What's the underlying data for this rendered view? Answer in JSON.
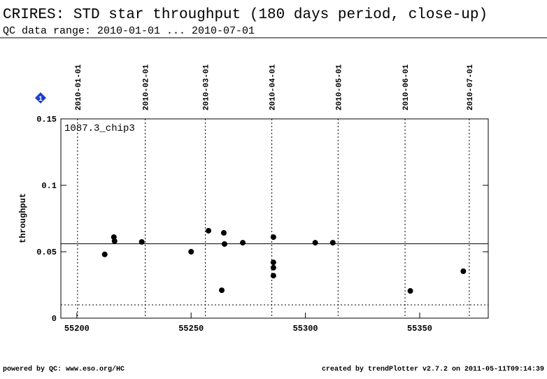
{
  "chart_data": {
    "type": "scatter",
    "title": "CRIRES: STD star throughput (180 days period, close-up)",
    "subtitle": "QC data range: 2010-01-01 ... 2010-07-01",
    "ylabel": "throughput",
    "annotation": "1087.3_chip3",
    "badge": "1",
    "footer_left": "powered by QC: www.eso.org/HC",
    "footer_right": "created by trendPlotter v2.7.2 on 2011-05-11T09:14:39",
    "x": [
      55212.2,
      55216.2,
      55216.5,
      55228.4,
      55250,
      55257.6,
      55263.4,
      55264.3,
      55264.6,
      55272.6,
      55286,
      55286,
      55286,
      55286,
      55304.3,
      55312,
      55345.9,
      55369.1
    ],
    "values": [
      0.048,
      0.061,
      0.058,
      0.0574,
      0.05,
      0.0658,
      0.021,
      0.0642,
      0.0558,
      0.0568,
      0.061,
      0.042,
      0.038,
      0.032,
      0.0568,
      0.0568,
      0.0205,
      0.0353
    ],
    "color": "#000000",
    "xlim": [
      55193,
      55380
    ],
    "ylim": [
      0,
      0.15
    ],
    "xticks": [
      55200,
      55250,
      55300,
      55350
    ],
    "yticks": [
      0,
      0.05,
      0.1,
      0.15
    ],
    "x2ticks": [
      {
        "value": 55200.3,
        "label": "2010-01-01"
      },
      {
        "value": 55229.9,
        "label": "2010-02-01"
      },
      {
        "value": 55256.2,
        "label": "2010-03-01"
      },
      {
        "value": 55285.3,
        "label": "2010-04-01"
      },
      {
        "value": 55314.3,
        "label": "2010-05-01"
      },
      {
        "value": 55343.6,
        "label": "2010-06-01"
      },
      {
        "value": 55371.7,
        "label": "2010-07-01"
      }
    ],
    "hlines": [
      {
        "value": 0.056,
        "style": "solid"
      },
      {
        "value": 0.01,
        "style": "dotted"
      }
    ]
  }
}
